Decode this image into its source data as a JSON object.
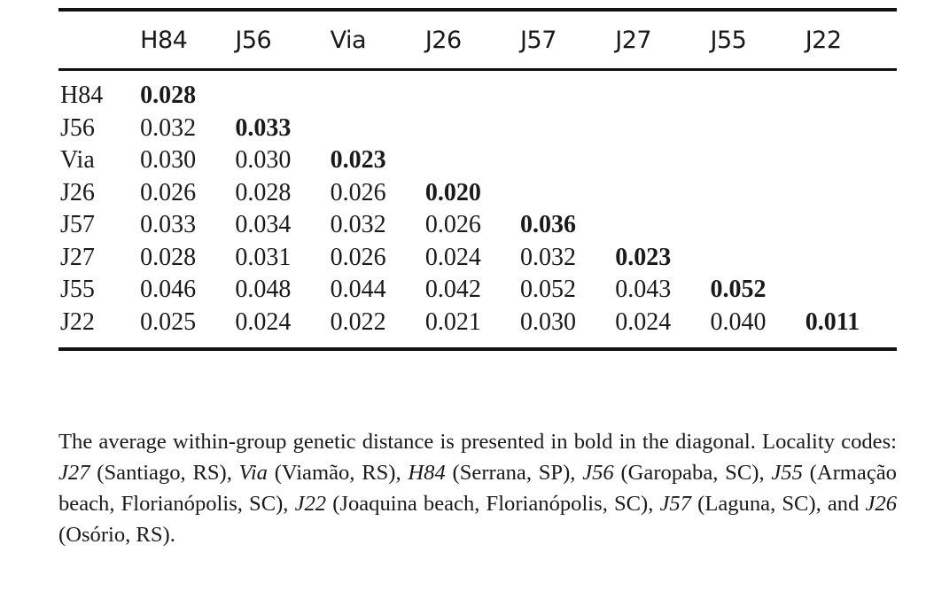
{
  "table": {
    "columns": [
      "H84",
      "J56",
      "Via",
      "J26",
      "J57",
      "J27",
      "J55",
      "J22"
    ],
    "rows": [
      {
        "label": "H84",
        "values": [
          "0.028"
        ]
      },
      {
        "label": "J56",
        "values": [
          "0.032",
          "0.033"
        ]
      },
      {
        "label": "Via",
        "values": [
          "0.030",
          "0.030",
          "0.023"
        ]
      },
      {
        "label": "J26",
        "values": [
          "0.026",
          "0.028",
          "0.026",
          "0.020"
        ]
      },
      {
        "label": "J57",
        "values": [
          "0.033",
          "0.034",
          "0.032",
          "0.026",
          "0.036"
        ]
      },
      {
        "label": "J27",
        "values": [
          "0.028",
          "0.031",
          "0.026",
          "0.024",
          "0.032",
          "0.023"
        ]
      },
      {
        "label": "J55",
        "values": [
          "0.046",
          "0.048",
          "0.044",
          "0.042",
          "0.052",
          "0.043",
          "0.052"
        ]
      },
      {
        "label": "J22",
        "values": [
          "0.025",
          "0.024",
          "0.022",
          "0.021",
          "0.030",
          "0.024",
          "0.040",
          "0.011"
        ]
      }
    ]
  },
  "caption": {
    "segments": [
      {
        "text": "The average within-group genetic distance is presented in bold in the diagonal. Locality codes: ",
        "italic": false
      },
      {
        "text": "J27",
        "italic": true
      },
      {
        "text": " (Santiago, RS), ",
        "italic": false
      },
      {
        "text": "Via",
        "italic": true
      },
      {
        "text": " (Viamão, RS), ",
        "italic": false
      },
      {
        "text": "H84",
        "italic": true
      },
      {
        "text": " (Serrana, SP), ",
        "italic": false
      },
      {
        "text": "J56",
        "italic": true
      },
      {
        "text": " (Garopaba, SC), ",
        "italic": false
      },
      {
        "text": "J55",
        "italic": true
      },
      {
        "text": " (Armação beach, Florianópolis, SC), ",
        "italic": false
      },
      {
        "text": "J22",
        "italic": true
      },
      {
        "text": " (Joaquina beach, Florianópolis, SC), ",
        "italic": false
      },
      {
        "text": "J57",
        "italic": true
      },
      {
        "text": " (Laguna, SC), and ",
        "italic": false
      },
      {
        "text": "J26",
        "italic": true
      },
      {
        "text": " (Osório, RS).",
        "italic": false
      }
    ]
  }
}
